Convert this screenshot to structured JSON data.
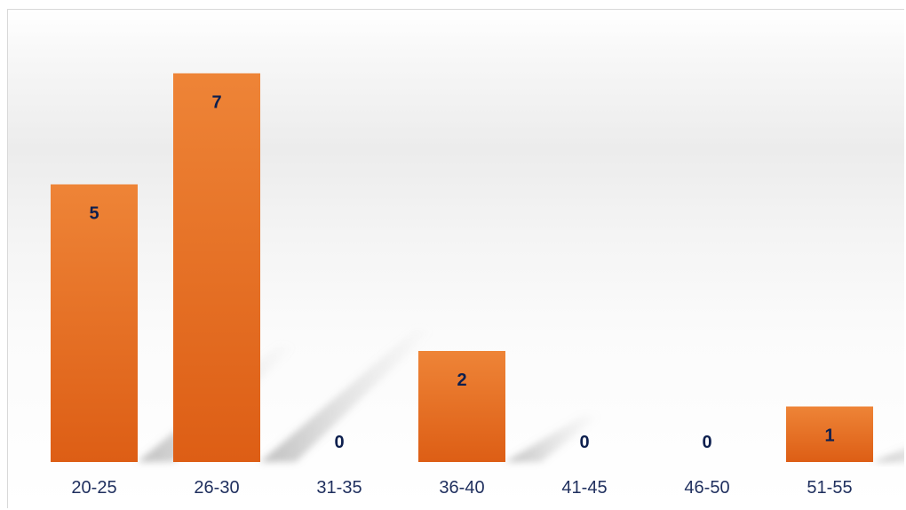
{
  "chart_data": {
    "type": "bar",
    "categories": [
      "20-25",
      "26-30",
      "31-35",
      "36-40",
      "41-45",
      "46-50",
      "51-55"
    ],
    "values": [
      5,
      7,
      0,
      2,
      0,
      0,
      1
    ],
    "title": "",
    "xlabel": "",
    "ylabel": "",
    "ylim": [
      0,
      8
    ],
    "grid": false,
    "data_labels": true,
    "legend": "none",
    "colors": {
      "bar_top": "#ee8437",
      "bar_bottom": "#dd5e15",
      "label": "#0d1f4e",
      "tick": "#1f2f5e"
    }
  }
}
